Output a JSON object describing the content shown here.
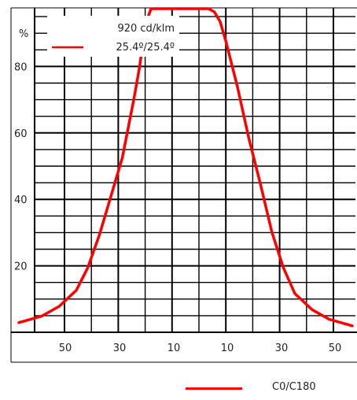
{
  "chart_data": {
    "type": "line",
    "ylabel": "%",
    "ylim": [
      0,
      100
    ],
    "yticks": [
      "20",
      "40",
      "60",
      "80"
    ],
    "xticks": [
      "50",
      "30",
      "10",
      "10",
      "30",
      "50"
    ],
    "xlim": [
      -58,
      58
    ],
    "legend": {
      "intensity_label": "920 cd/klm",
      "series_label": "25.4º/25.4º"
    },
    "series": [
      {
        "name": "C0/C180",
        "color": "#ff0000",
        "x": [
          -58,
          -50,
          -44,
          -38,
          -34,
          -30,
          -26,
          -22,
          -20,
          -18,
          -16,
          -14,
          -12,
          -8,
          -4,
          0,
          4,
          8,
          10,
          12,
          14,
          16,
          18,
          20,
          22,
          26,
          30,
          34,
          38,
          44,
          50,
          58
        ],
        "y": [
          3,
          5,
          8,
          13,
          20,
          30,
          42,
          54,
          63,
          72,
          82,
          95,
          100,
          100,
          100,
          100,
          100,
          100,
          99,
          96,
          90,
          83,
          76,
          68,
          60,
          46,
          31,
          20,
          12,
          7,
          4,
          2
        ]
      }
    ]
  }
}
